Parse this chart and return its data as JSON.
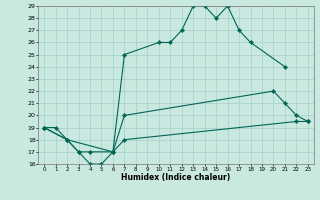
{
  "xlabel": "Humidex (Indice chaleur)",
  "xlim": [
    -0.5,
    23.5
  ],
  "ylim": [
    16,
    29
  ],
  "yticks": [
    16,
    17,
    18,
    19,
    20,
    21,
    22,
    23,
    24,
    25,
    26,
    27,
    28,
    29
  ],
  "xticks": [
    0,
    1,
    2,
    3,
    4,
    5,
    6,
    7,
    8,
    9,
    10,
    11,
    12,
    13,
    14,
    15,
    16,
    17,
    18,
    19,
    20,
    21,
    22,
    23
  ],
  "background_color": "#c8e8e0",
  "grid_color": "#a0c8c0",
  "line_color": "#006655",
  "line1_x": [
    0,
    1,
    2,
    3,
    4,
    5,
    6,
    7,
    10,
    11,
    12,
    13,
    14,
    15,
    16,
    17,
    18,
    21
  ],
  "line1_y": [
    19,
    19,
    18,
    17,
    16,
    16,
    17,
    25,
    26,
    26,
    27,
    29,
    29,
    28,
    29,
    27,
    26,
    24
  ],
  "line2_x": [
    0,
    2,
    3,
    4,
    6,
    7,
    20,
    21,
    22,
    23
  ],
  "line2_y": [
    19,
    18,
    17,
    17,
    17,
    20,
    22,
    21,
    20,
    19.5
  ],
  "line3_x": [
    0,
    2,
    6,
    7,
    22,
    23
  ],
  "line3_y": [
    19,
    18,
    17,
    18,
    19.5,
    19.5
  ]
}
